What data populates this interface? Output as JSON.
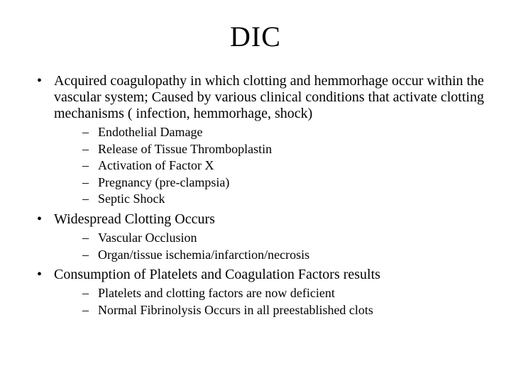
{
  "title": "DIC",
  "bullets": [
    {
      "text": "Acquired coagulopathy in which clotting and hemmorhage occur within the vascular system; Caused by various clinical conditions that activate clotting mechanisms ( infection, hemmorhage, shock)",
      "sub": [
        "Endothelial Damage",
        "Release of Tissue Thromboplastin",
        "Activation of Factor X",
        "Pregnancy (pre-clampsia)",
        "Septic Shock"
      ]
    },
    {
      "text": "Widespread Clotting Occurs",
      "sub": [
        "Vascular Occlusion",
        "Organ/tissue ischemia/infarction/necrosis"
      ]
    },
    {
      "text": "Consumption of Platelets and Coagulation Factors results",
      "sub": [
        "Platelets and clotting factors are now deficient",
        "Normal Fibrinolysis Occurs in all preestablished clots"
      ]
    }
  ]
}
